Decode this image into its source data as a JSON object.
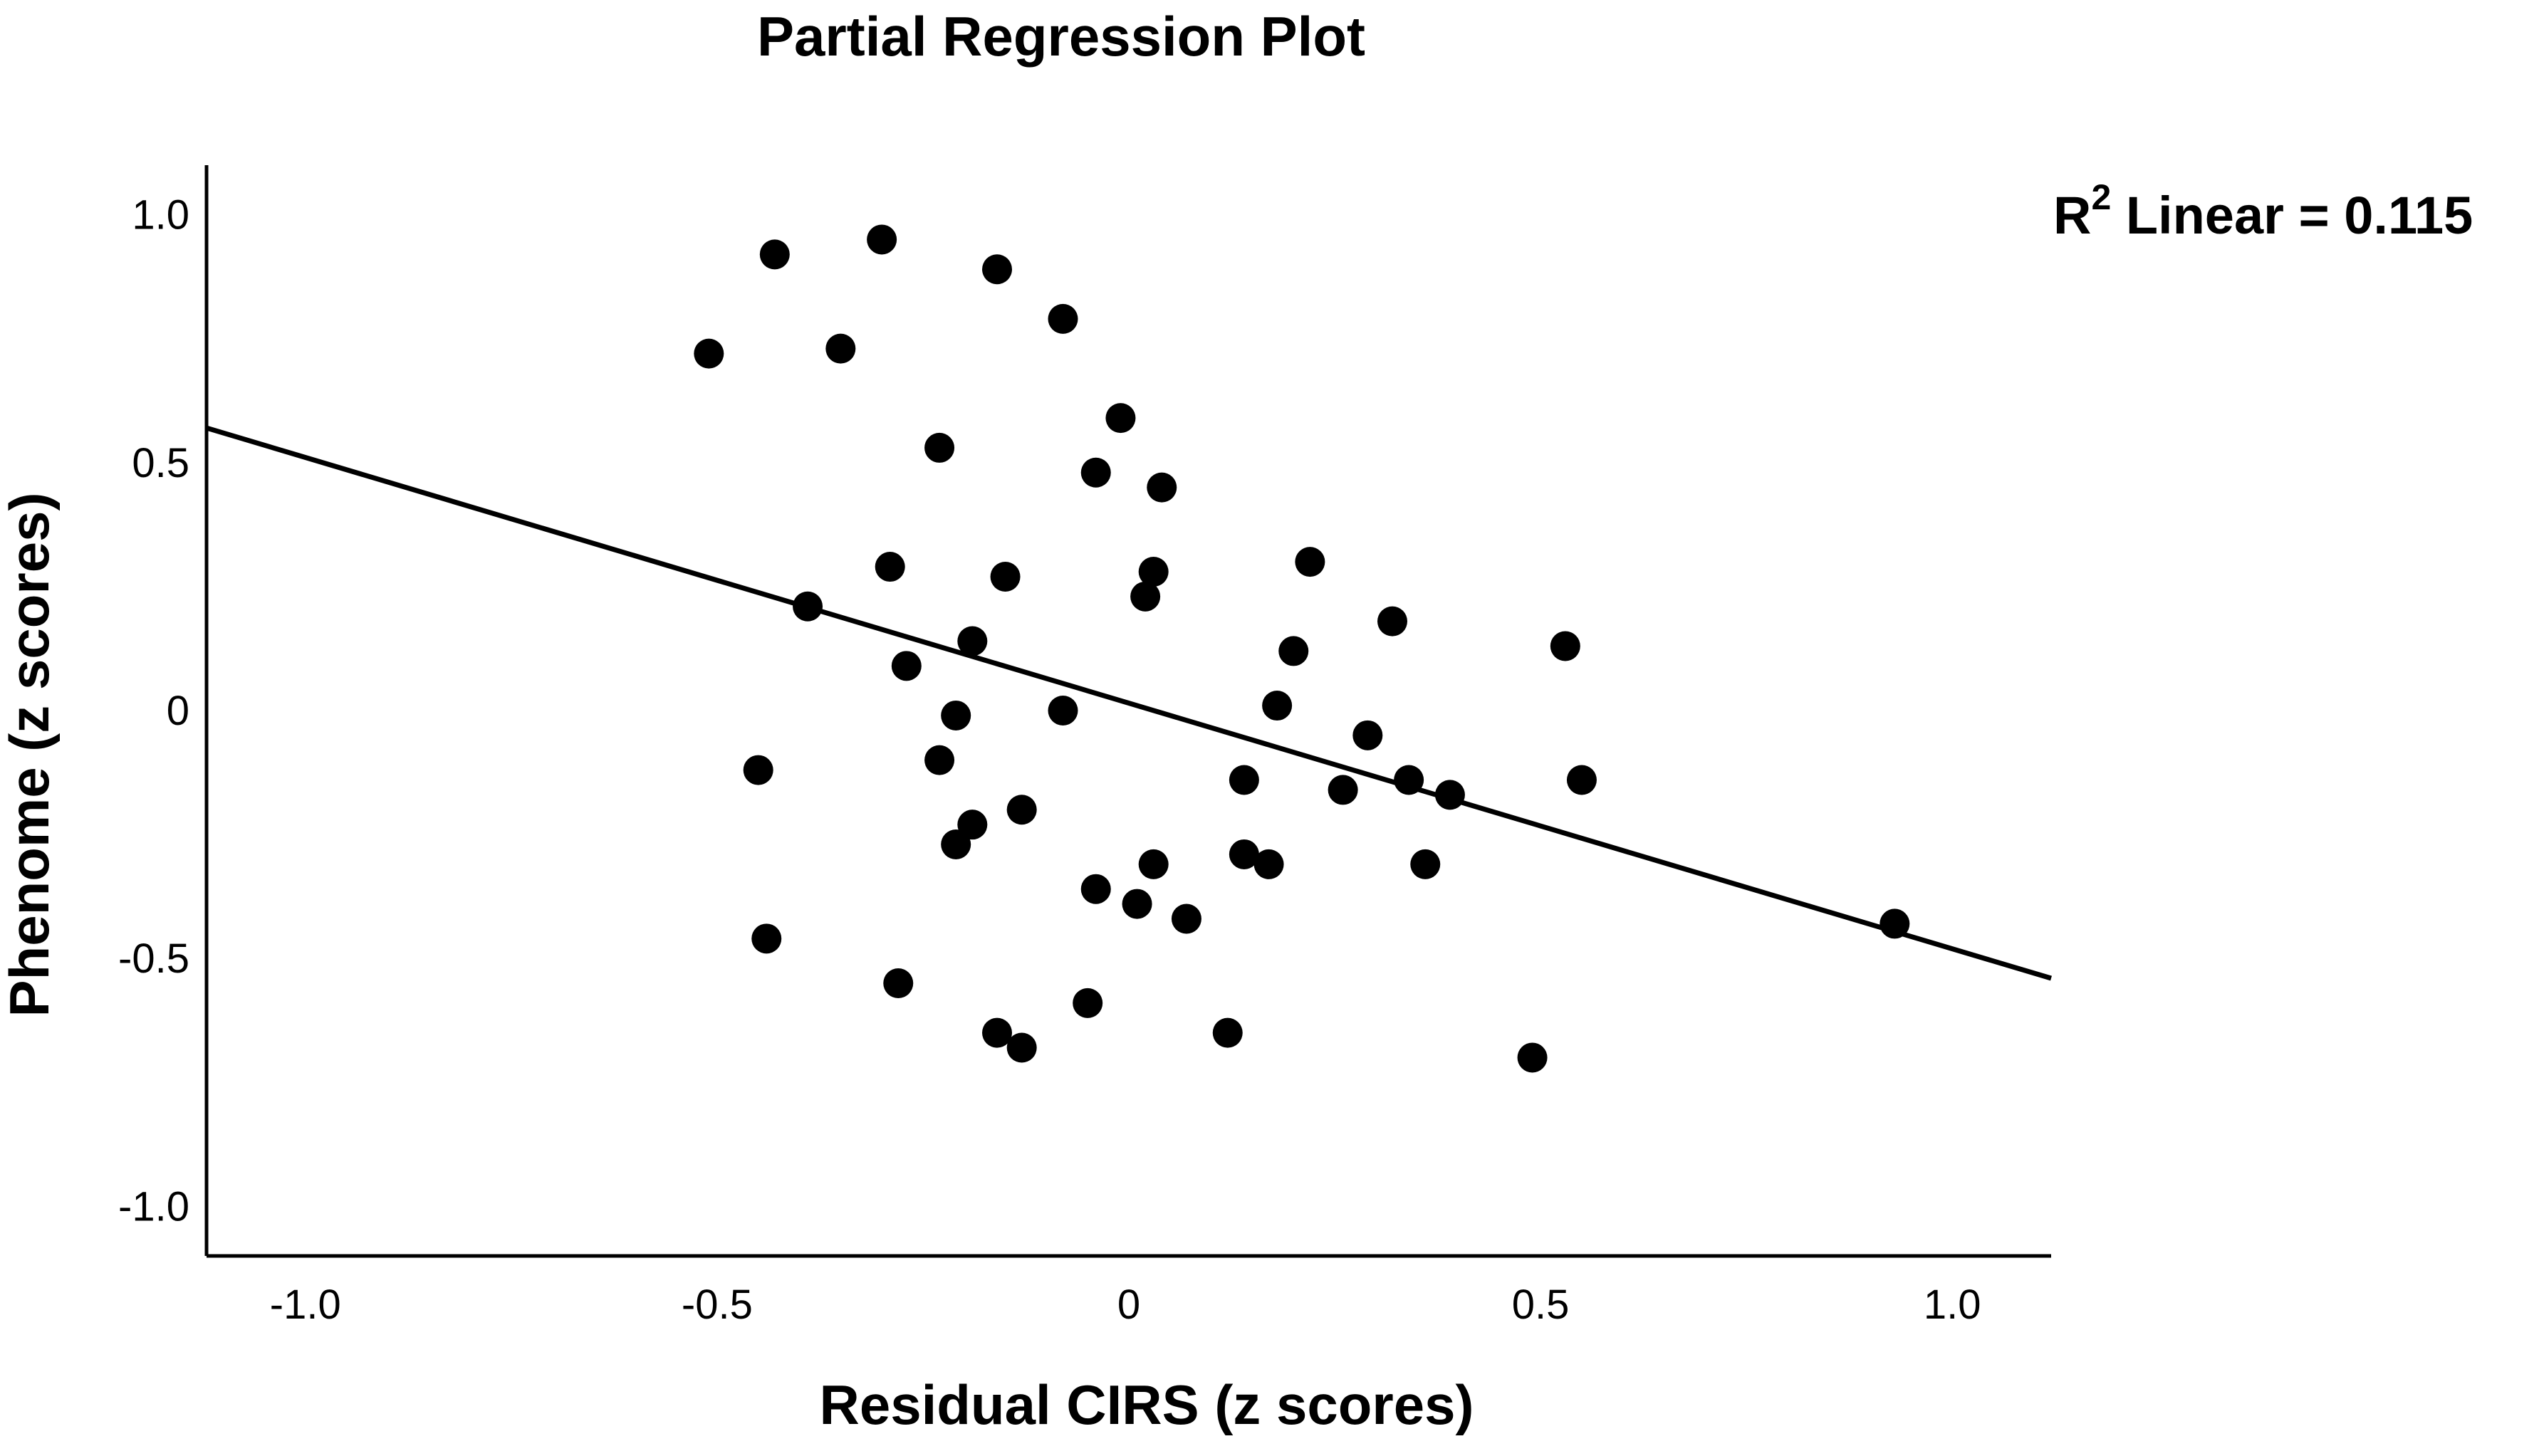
{
  "chart_data": {
    "type": "scatter",
    "title": "Partial Regression Plot",
    "xlabel": "Residual CIRS (z scores)",
    "ylabel": "Phenome (z scores)",
    "xlim": [
      -1.12,
      1.12
    ],
    "ylim": [
      -1.1,
      1.1
    ],
    "xticks": [
      {
        "value": -1.0,
        "label": "-1.0"
      },
      {
        "value": -0.5,
        "label": "-0.5"
      },
      {
        "value": 0,
        "label": "0"
      },
      {
        "value": 0.5,
        "label": "0.5"
      },
      {
        "value": 1.0,
        "label": "1.0"
      }
    ],
    "yticks": [
      {
        "value": 1.0,
        "label": "1.0"
      },
      {
        "value": 0.5,
        "label": "0.5"
      },
      {
        "value": 0,
        "label": "0"
      },
      {
        "value": -0.5,
        "label": "-0.5"
      },
      {
        "value": -1.0,
        "label": "-1.0"
      }
    ],
    "annotation": {
      "r_label": "R",
      "superscript": "2",
      "text": " Linear = 0.115"
    },
    "fit_line": {
      "x": [
        -1.12,
        1.12
      ],
      "y": [
        0.57,
        -0.54
      ]
    },
    "points": [
      {
        "x": -0.51,
        "y": 0.72
      },
      {
        "x": -0.43,
        "y": 0.92
      },
      {
        "x": -0.3,
        "y": 0.95
      },
      {
        "x": -0.35,
        "y": 0.73
      },
      {
        "x": -0.16,
        "y": 0.89
      },
      {
        "x": -0.08,
        "y": 0.79
      },
      {
        "x": -0.01,
        "y": 0.59
      },
      {
        "x": -0.23,
        "y": 0.53
      },
      {
        "x": -0.04,
        "y": 0.48
      },
      {
        "x": 0.04,
        "y": 0.45
      },
      {
        "x": -0.29,
        "y": 0.29
      },
      {
        "x": -0.15,
        "y": 0.27
      },
      {
        "x": 0.03,
        "y": 0.28
      },
      {
        "x": 0.02,
        "y": 0.23
      },
      {
        "x": 0.22,
        "y": 0.3
      },
      {
        "x": -0.39,
        "y": 0.21
      },
      {
        "x": 0.32,
        "y": 0.18
      },
      {
        "x": -0.19,
        "y": 0.14
      },
      {
        "x": 0.2,
        "y": 0.12
      },
      {
        "x": 0.53,
        "y": 0.13
      },
      {
        "x": -0.27,
        "y": 0.09
      },
      {
        "x": -0.21,
        "y": -0.01
      },
      {
        "x": -0.08,
        "y": 0.0
      },
      {
        "x": 0.18,
        "y": 0.01
      },
      {
        "x": 0.29,
        "y": -0.05
      },
      {
        "x": -0.45,
        "y": -0.12
      },
      {
        "x": -0.23,
        "y": -0.1
      },
      {
        "x": 0.14,
        "y": -0.14
      },
      {
        "x": 0.26,
        "y": -0.16
      },
      {
        "x": 0.34,
        "y": -0.14
      },
      {
        "x": 0.39,
        "y": -0.17
      },
      {
        "x": 0.55,
        "y": -0.14
      },
      {
        "x": -0.19,
        "y": -0.23
      },
      {
        "x": -0.13,
        "y": -0.2
      },
      {
        "x": -0.21,
        "y": -0.27
      },
      {
        "x": 0.03,
        "y": -0.31
      },
      {
        "x": 0.14,
        "y": -0.29
      },
      {
        "x": 0.17,
        "y": -0.31
      },
      {
        "x": 0.36,
        "y": -0.31
      },
      {
        "x": -0.04,
        "y": -0.36
      },
      {
        "x": 0.01,
        "y": -0.39
      },
      {
        "x": 0.07,
        "y": -0.42
      },
      {
        "x": 0.93,
        "y": -0.43
      },
      {
        "x": -0.44,
        "y": -0.46
      },
      {
        "x": -0.28,
        "y": -0.55
      },
      {
        "x": -0.05,
        "y": -0.59
      },
      {
        "x": -0.16,
        "y": -0.65
      },
      {
        "x": -0.13,
        "y": -0.68
      },
      {
        "x": 0.12,
        "y": -0.65
      },
      {
        "x": 0.49,
        "y": -0.7
      }
    ]
  }
}
